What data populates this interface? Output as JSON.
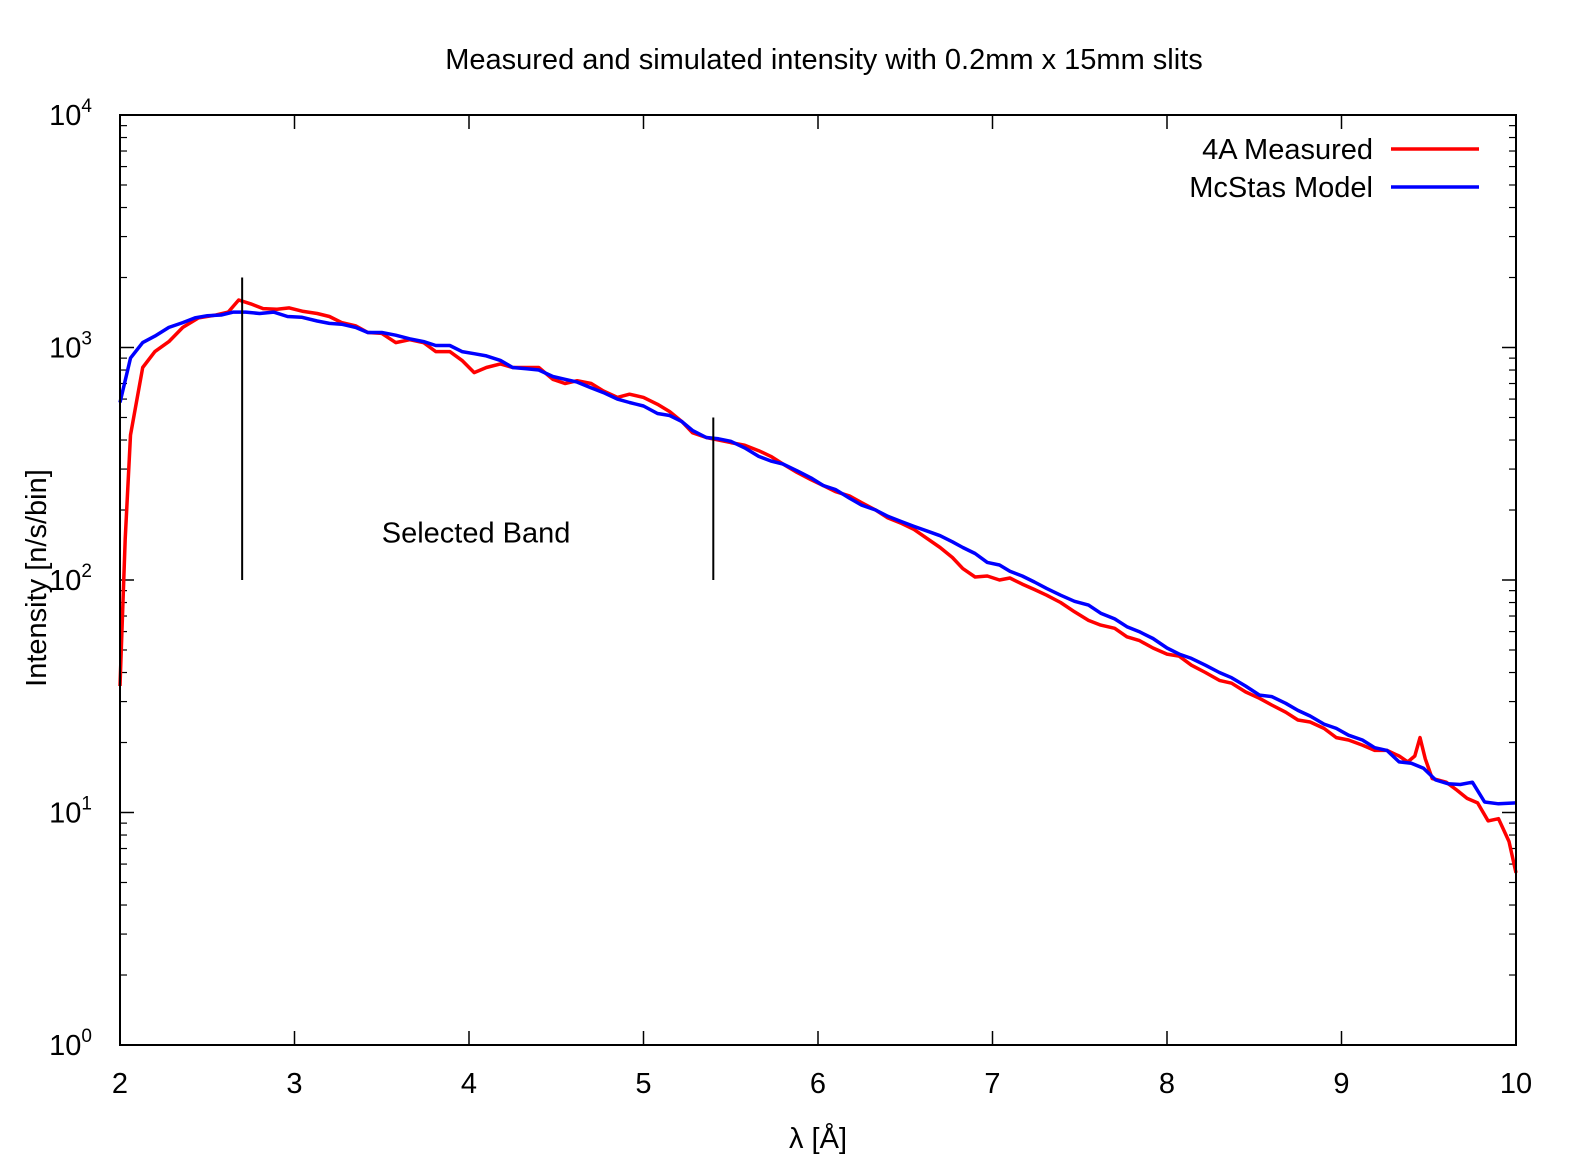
{
  "chart_data": {
    "type": "line",
    "title": "Measured and simulated intensity with 0.2mm x 15mm slits",
    "xlabel": "λ [Å]",
    "ylabel": "Intensity [n/s/bin]",
    "xlim": [
      2,
      10
    ],
    "ylim": [
      1,
      10000
    ],
    "yscale": "log",
    "grid": false,
    "legend_position": "top-right",
    "x_ticks": [
      "2",
      "3",
      "4",
      "5",
      "6",
      "7",
      "8",
      "9",
      "10"
    ],
    "y_ticks": [
      {
        "base": "10",
        "exp": "0"
      },
      {
        "base": "10",
        "exp": "1"
      },
      {
        "base": "10",
        "exp": "2"
      },
      {
        "base": "10",
        "exp": "3"
      },
      {
        "base": "10",
        "exp": "4"
      }
    ],
    "series": [
      {
        "name": "4A Measured",
        "color": "#ff0000",
        "points": [
          [
            2.0,
            35
          ],
          [
            2.03,
            150
          ],
          [
            2.06,
            420
          ],
          [
            2.13,
            820
          ],
          [
            2.2,
            960
          ],
          [
            2.28,
            1060
          ],
          [
            2.36,
            1220
          ],
          [
            2.45,
            1340
          ],
          [
            2.55,
            1380
          ],
          [
            2.62,
            1420
          ],
          [
            2.68,
            1600
          ],
          [
            2.75,
            1540
          ],
          [
            2.82,
            1470
          ],
          [
            2.9,
            1460
          ],
          [
            2.97,
            1480
          ],
          [
            3.05,
            1430
          ],
          [
            3.13,
            1400
          ],
          [
            3.2,
            1360
          ],
          [
            3.27,
            1280
          ],
          [
            3.35,
            1240
          ],
          [
            3.42,
            1160
          ],
          [
            3.5,
            1150
          ],
          [
            3.58,
            1050
          ],
          [
            3.66,
            1080
          ],
          [
            3.74,
            1050
          ],
          [
            3.81,
            960
          ],
          [
            3.89,
            960
          ],
          [
            3.96,
            880
          ],
          [
            4.03,
            780
          ],
          [
            4.1,
            820
          ],
          [
            4.18,
            850
          ],
          [
            4.25,
            820
          ],
          [
            4.33,
            820
          ],
          [
            4.4,
            820
          ],
          [
            4.48,
            730
          ],
          [
            4.55,
            700
          ],
          [
            4.62,
            720
          ],
          [
            4.7,
            700
          ],
          [
            4.77,
            650
          ],
          [
            4.85,
            610
          ],
          [
            4.92,
            630
          ],
          [
            5.0,
            610
          ],
          [
            5.08,
            570
          ],
          [
            5.15,
            530
          ],
          [
            5.22,
            480
          ],
          [
            5.28,
            430
          ],
          [
            5.36,
            410
          ],
          [
            5.43,
            400
          ],
          [
            5.5,
            390
          ],
          [
            5.58,
            380
          ],
          [
            5.66,
            360
          ],
          [
            5.73,
            340
          ],
          [
            5.8,
            315
          ],
          [
            5.88,
            290
          ],
          [
            5.96,
            270
          ],
          [
            6.03,
            255
          ],
          [
            6.1,
            240
          ],
          [
            6.18,
            230
          ],
          [
            6.25,
            215
          ],
          [
            6.33,
            200
          ],
          [
            6.4,
            185
          ],
          [
            6.48,
            175
          ],
          [
            6.55,
            165
          ],
          [
            6.63,
            150
          ],
          [
            6.7,
            138
          ],
          [
            6.77,
            125
          ],
          [
            6.83,
            112
          ],
          [
            6.9,
            103
          ],
          [
            6.97,
            104
          ],
          [
            7.04,
            100
          ],
          [
            7.1,
            102
          ],
          [
            7.17,
            96
          ],
          [
            7.24,
            91
          ],
          [
            7.31,
            86
          ],
          [
            7.39,
            80
          ],
          [
            7.47,
            73
          ],
          [
            7.55,
            67
          ],
          [
            7.62,
            64
          ],
          [
            7.7,
            62
          ],
          [
            7.77,
            57
          ],
          [
            7.84,
            55
          ],
          [
            7.92,
            51
          ],
          [
            8.0,
            48
          ],
          [
            8.07,
            47
          ],
          [
            8.14,
            43
          ],
          [
            8.22,
            40
          ],
          [
            8.3,
            37
          ],
          [
            8.37,
            36
          ],
          [
            8.45,
            33
          ],
          [
            8.53,
            31
          ],
          [
            8.6,
            29
          ],
          [
            8.68,
            27
          ],
          [
            8.75,
            25
          ],
          [
            8.82,
            24.5
          ],
          [
            8.9,
            23
          ],
          [
            8.97,
            21
          ],
          [
            9.04,
            20.5
          ],
          [
            9.12,
            19.5
          ],
          [
            9.19,
            18.5
          ],
          [
            9.26,
            18.5
          ],
          [
            9.33,
            17.5
          ],
          [
            9.38,
            16.5
          ],
          [
            9.42,
            17.5
          ],
          [
            9.45,
            21
          ],
          [
            9.48,
            17
          ],
          [
            9.52,
            14
          ],
          [
            9.6,
            13.5
          ],
          [
            9.66,
            12.5
          ],
          [
            9.72,
            11.5
          ],
          [
            9.78,
            11
          ],
          [
            9.84,
            9.2
          ],
          [
            9.9,
            9.4
          ],
          [
            9.96,
            7.5
          ],
          [
            10.0,
            5.5
          ]
        ]
      },
      {
        "name": "McStas Model",
        "color": "#0000ff",
        "points": [
          [
            2.0,
            580
          ],
          [
            2.06,
            900
          ],
          [
            2.13,
            1050
          ],
          [
            2.2,
            1120
          ],
          [
            2.28,
            1220
          ],
          [
            2.36,
            1280
          ],
          [
            2.43,
            1340
          ],
          [
            2.5,
            1370
          ],
          [
            2.58,
            1380
          ],
          [
            2.65,
            1420
          ],
          [
            2.72,
            1420
          ],
          [
            2.8,
            1400
          ],
          [
            2.88,
            1420
          ],
          [
            2.96,
            1360
          ],
          [
            3.04,
            1350
          ],
          [
            3.13,
            1300
          ],
          [
            3.2,
            1270
          ],
          [
            3.27,
            1260
          ],
          [
            3.35,
            1220
          ],
          [
            3.42,
            1160
          ],
          [
            3.5,
            1160
          ],
          [
            3.58,
            1130
          ],
          [
            3.66,
            1090
          ],
          [
            3.74,
            1060
          ],
          [
            3.81,
            1020
          ],
          [
            3.89,
            1020
          ],
          [
            3.96,
            960
          ],
          [
            4.03,
            940
          ],
          [
            4.1,
            920
          ],
          [
            4.18,
            880
          ],
          [
            4.25,
            820
          ],
          [
            4.33,
            810
          ],
          [
            4.4,
            800
          ],
          [
            4.48,
            750
          ],
          [
            4.55,
            730
          ],
          [
            4.62,
            710
          ],
          [
            4.7,
            670
          ],
          [
            4.77,
            640
          ],
          [
            4.85,
            600
          ],
          [
            4.92,
            580
          ],
          [
            5.0,
            560
          ],
          [
            5.08,
            520
          ],
          [
            5.15,
            510
          ],
          [
            5.22,
            480
          ],
          [
            5.28,
            440
          ],
          [
            5.36,
            410
          ],
          [
            5.43,
            405
          ],
          [
            5.5,
            395
          ],
          [
            5.58,
            370
          ],
          [
            5.66,
            340
          ],
          [
            5.73,
            325
          ],
          [
            5.8,
            315
          ],
          [
            5.88,
            295
          ],
          [
            5.96,
            275
          ],
          [
            6.03,
            255
          ],
          [
            6.1,
            245
          ],
          [
            6.18,
            225
          ],
          [
            6.25,
            210
          ],
          [
            6.33,
            200
          ],
          [
            6.4,
            188
          ],
          [
            6.48,
            178
          ],
          [
            6.55,
            170
          ],
          [
            6.63,
            162
          ],
          [
            6.7,
            155
          ],
          [
            6.77,
            146
          ],
          [
            6.83,
            138
          ],
          [
            6.9,
            130
          ],
          [
            6.97,
            119
          ],
          [
            7.04,
            116
          ],
          [
            7.1,
            109
          ],
          [
            7.17,
            104
          ],
          [
            7.24,
            98
          ],
          [
            7.31,
            92
          ],
          [
            7.39,
            86
          ],
          [
            7.47,
            81
          ],
          [
            7.55,
            78
          ],
          [
            7.62,
            72
          ],
          [
            7.7,
            68
          ],
          [
            7.77,
            63
          ],
          [
            7.84,
            60
          ],
          [
            7.92,
            56
          ],
          [
            8.0,
            51
          ],
          [
            8.07,
            48
          ],
          [
            8.14,
            46
          ],
          [
            8.22,
            43
          ],
          [
            8.3,
            40
          ],
          [
            8.37,
            38
          ],
          [
            8.45,
            35
          ],
          [
            8.53,
            32
          ],
          [
            8.6,
            31.5
          ],
          [
            8.68,
            29.5
          ],
          [
            8.75,
            27.5
          ],
          [
            8.82,
            26
          ],
          [
            8.9,
            24
          ],
          [
            8.97,
            23
          ],
          [
            9.04,
            21.5
          ],
          [
            9.12,
            20.5
          ],
          [
            9.19,
            19
          ],
          [
            9.26,
            18.5
          ],
          [
            9.33,
            16.5
          ],
          [
            9.4,
            16.3
          ],
          [
            9.47,
            15.5
          ],
          [
            9.54,
            13.8
          ],
          [
            9.61,
            13.3
          ],
          [
            9.68,
            13.2
          ],
          [
            9.75,
            13.5
          ],
          [
            9.82,
            11.1
          ],
          [
            9.9,
            10.9
          ],
          [
            10.0,
            11
          ]
        ]
      }
    ],
    "annotations": [
      {
        "text": "Selected Band",
        "x": 3.5,
        "y": 145
      }
    ],
    "markers": [
      {
        "x": 2.7,
        "y_from": 100,
        "y_to": 2000
      },
      {
        "x": 5.4,
        "y_from": 100,
        "y_to": 500
      }
    ]
  }
}
